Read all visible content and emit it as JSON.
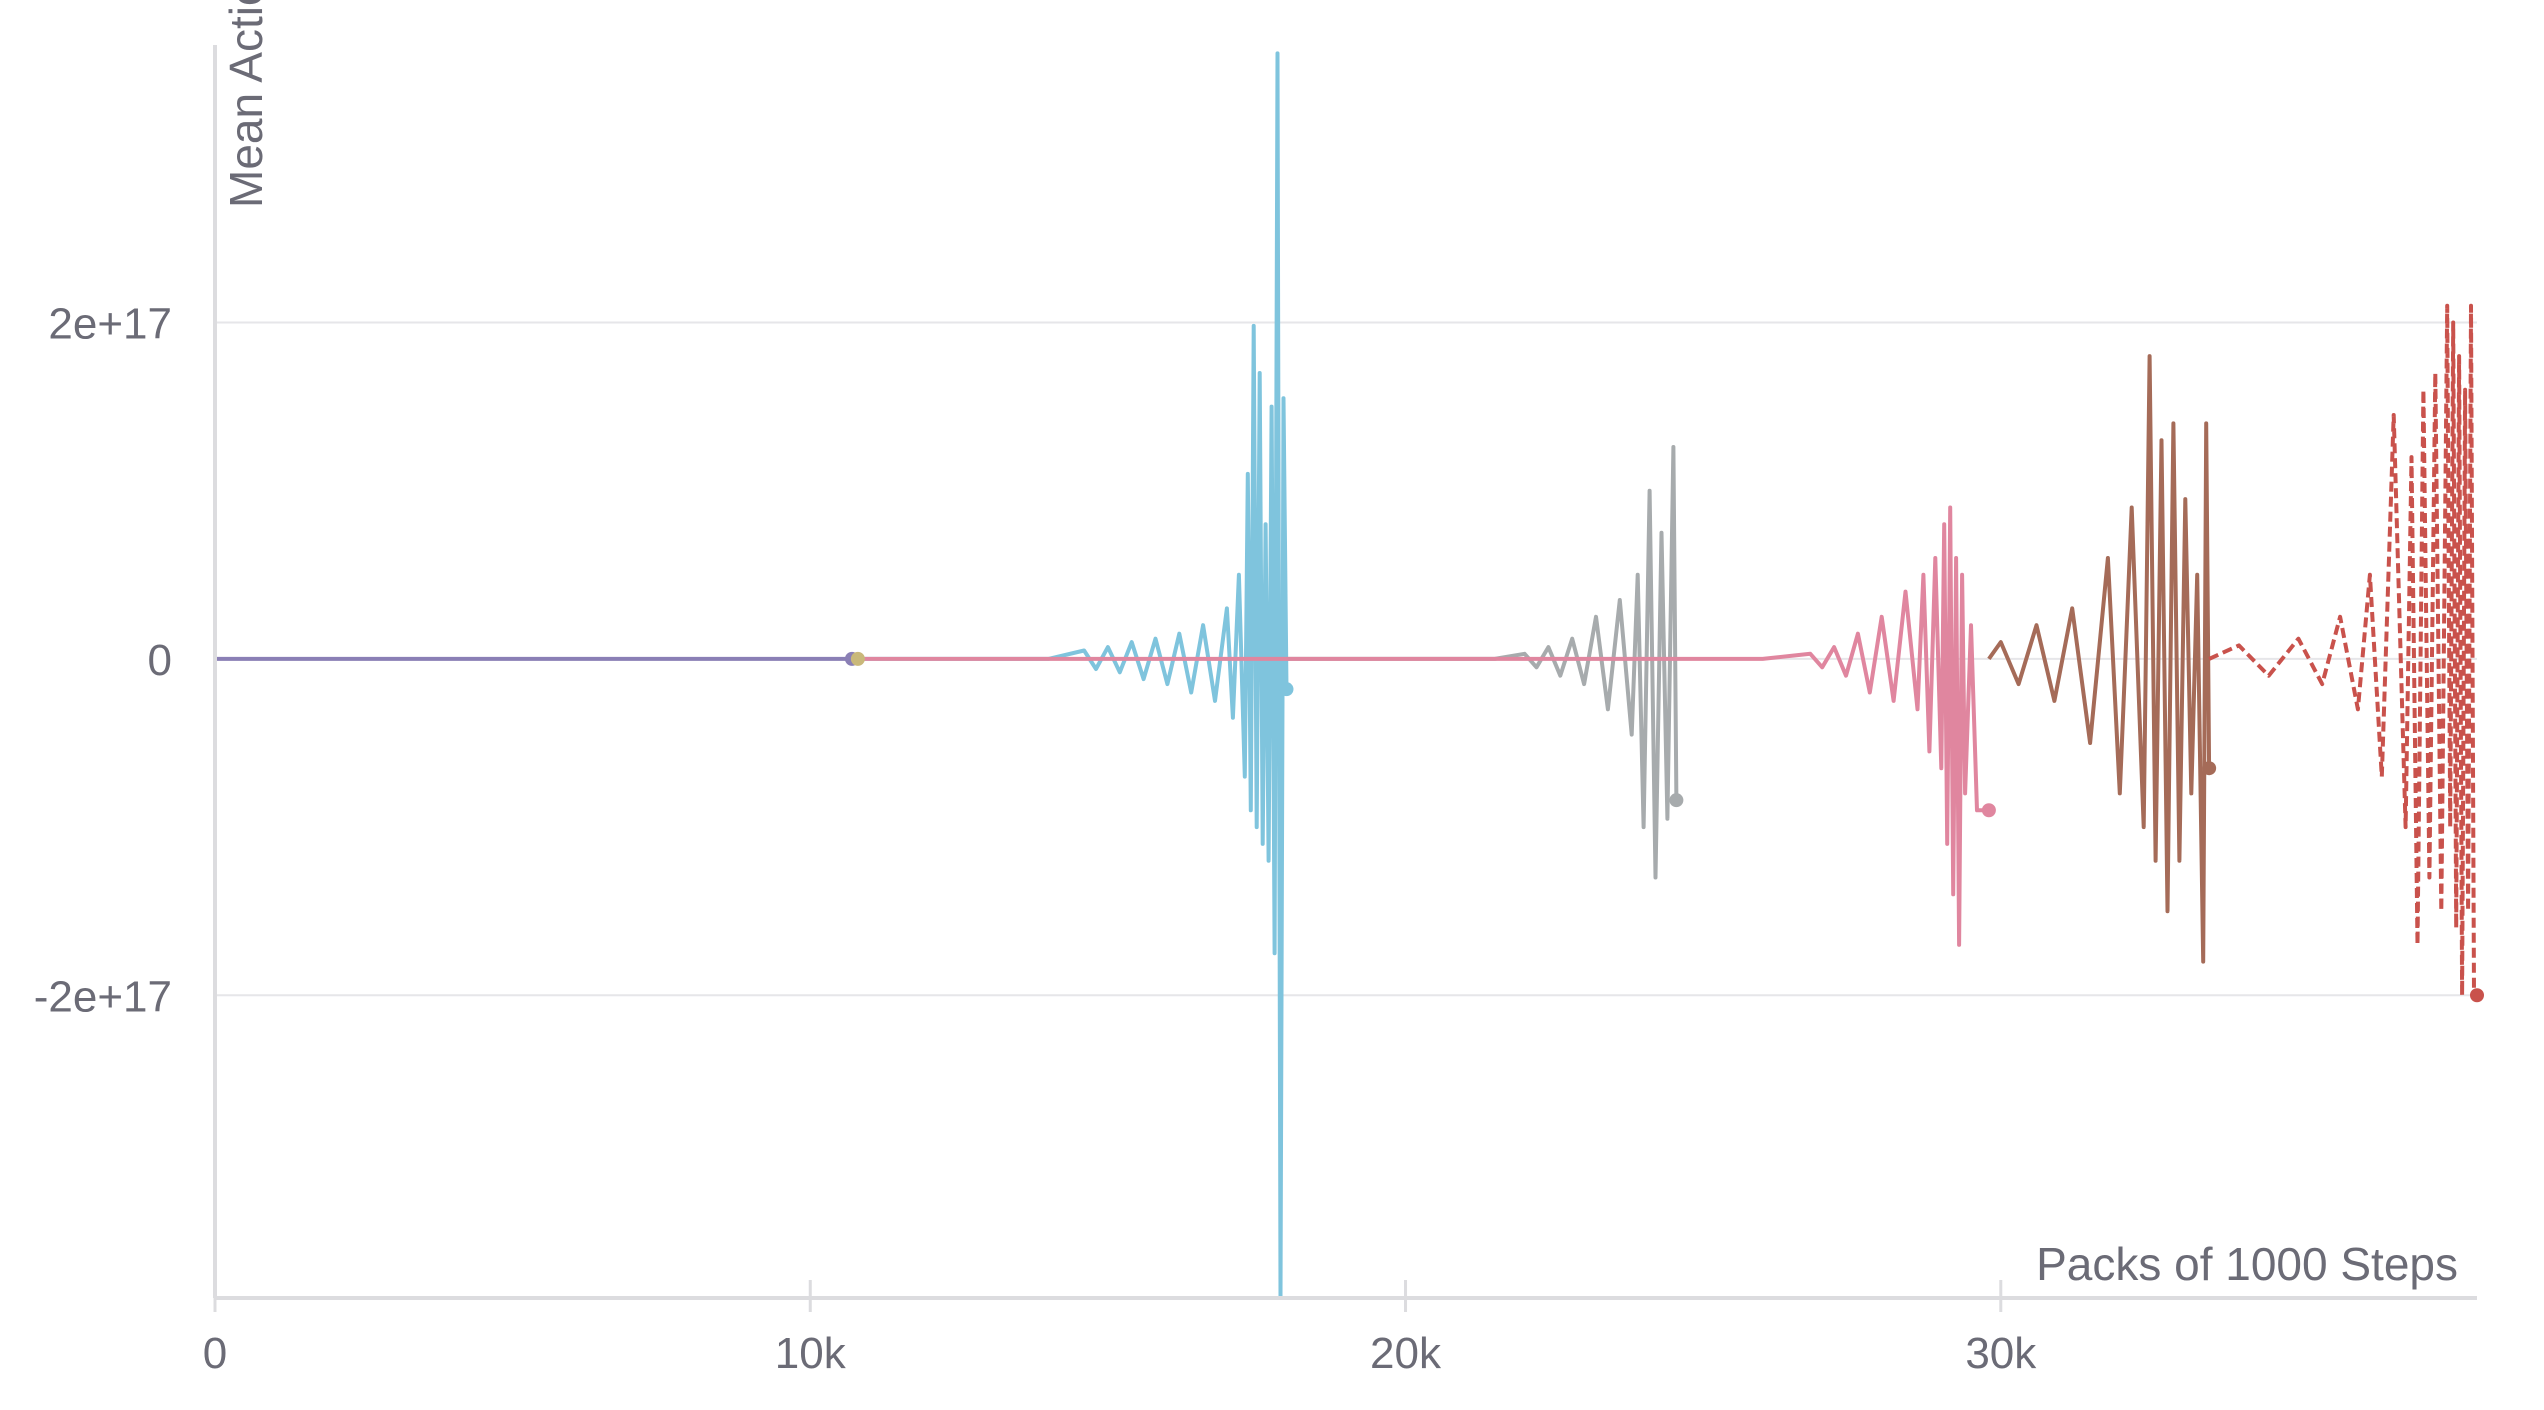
{
  "chart_data": {
    "type": "line",
    "title": "",
    "xlabel": "Packs of 1000 Steps",
    "ylabel": "Mean Action",
    "xlim": [
      0,
      38000
    ],
    "ylim": [
      -3.8e+17,
      3.65e+17
    ],
    "x_ticks": [
      {
        "value": 0,
        "label": "0"
      },
      {
        "value": 10000,
        "label": "10k"
      },
      {
        "value": 20000,
        "label": "20k"
      },
      {
        "value": 30000,
        "label": "30k"
      }
    ],
    "y_ticks": [
      {
        "value": 2e+17,
        "label": "2e+17"
      },
      {
        "value": 0,
        "label": "0"
      },
      {
        "value": -2e+17,
        "label": "-2e+17"
      }
    ],
    "grid": true,
    "legend": "none",
    "series": [
      {
        "color": "#8a7fb5",
        "dashed": false,
        "x": [
          0,
          2000,
          4000,
          6000,
          8000,
          10000,
          10700
        ],
        "y": [
          0,
          0,
          0,
          0,
          0,
          0,
          0
        ]
      },
      {
        "color": "#7fc4dd",
        "dashed": false,
        "x": [
          10800,
          12000,
          13000,
          14000,
          14600,
          14800,
          15000,
          15200,
          15400,
          15600,
          15800,
          16000,
          16200,
          16400,
          16600,
          16800,
          17000,
          17100,
          17200,
          17300,
          17350,
          17400,
          17450,
          17500,
          17550,
          17600,
          17650,
          17700,
          17750,
          17800,
          17850,
          17900,
          17950,
          18000
        ],
        "y": [
          0,
          0,
          0,
          0,
          5000000000000000.0,
          -6000000000000000.0,
          7000000000000000.0,
          -8000000000000000.0,
          1e+16,
          -1.2e+16,
          1.2e+16,
          -1.5e+16,
          1.5e+16,
          -2e+16,
          2e+16,
          -2.5e+16,
          3e+16,
          -3.5e+16,
          5e+16,
          -7e+16,
          1.1e+17,
          -9e+16,
          1.98e+17,
          -1e+17,
          1.7e+17,
          -1.1e+17,
          8e+16,
          -1.2e+17,
          1.5e+17,
          -1.75e+17,
          3.6e+17,
          -3.8e+17,
          1.55e+17,
          -1.8e+16
        ]
      },
      {
        "color": "#a7abad",
        "dashed": false,
        "x": [
          18000,
          20000,
          21500,
          22000,
          22200,
          22400,
          22600,
          22800,
          23000,
          23200,
          23400,
          23600,
          23800,
          23900,
          24000,
          24100,
          24200,
          24300,
          24400,
          24500,
          24550
        ],
        "y": [
          0,
          0,
          0,
          3000000000000000.0,
          -5000000000000000.0,
          7000000000000000.0,
          -1e+16,
          1.2e+16,
          -1.5e+16,
          2.5e+16,
          -3e+16,
          3.5e+16,
          -4.5e+16,
          5e+16,
          -1e+17,
          1e+17,
          -1.3e+17,
          7.5e+16,
          -9.5e+16,
          1.26e+17,
          -8.4e+16
        ]
      },
      {
        "color": "#e0869f",
        "dashed": false,
        "x": [
          10800,
          14000,
          18000,
          24600,
          26000,
          26800,
          27000,
          27200,
          27400,
          27600,
          27800,
          28000,
          28200,
          28400,
          28600,
          28700,
          28800,
          28900,
          29000,
          29050,
          29100,
          29150,
          29200,
          29250,
          29300,
          29350,
          29400,
          29500,
          29600,
          29800
        ],
        "y": [
          0,
          0,
          0,
          0,
          0,
          3000000000000000.0,
          -5000000000000000.0,
          7000000000000000.0,
          -1e+16,
          1.5e+16,
          -2e+16,
          2.5e+16,
          -2.5e+16,
          4e+16,
          -3e+16,
          5e+16,
          -5.5e+16,
          6e+16,
          -6.5e+16,
          8e+16,
          -1.1e+17,
          9e+16,
          -1.4e+17,
          6e+16,
          -1.7e+17,
          5e+16,
          -8e+16,
          2e+16,
          -9e+16,
          -9e+16
        ]
      },
      {
        "color": "#a56b58",
        "dashed": false,
        "x": [
          29800,
          30000,
          30300,
          30600,
          30900,
          31200,
          31500,
          31800,
          32000,
          32200,
          32400,
          32500,
          32600,
          32700,
          32800,
          32900,
          33000,
          33100,
          33200,
          33300,
          33400,
          33450,
          33500
        ],
        "y": [
          0,
          1e+16,
          -1.5e+16,
          2e+16,
          -2.5e+16,
          3e+16,
          -5e+16,
          6e+16,
          -8e+16,
          9e+16,
          -1e+17,
          1.8e+17,
          -1.2e+17,
          1.3e+17,
          -1.5e+17,
          1.4e+17,
          -1.2e+17,
          9.5e+16,
          -8e+16,
          5e+16,
          -1.8e+17,
          1.4e+17,
          -6.5e+16
        ]
      },
      {
        "color": "#c9524c",
        "dashed": true,
        "x": [
          33500,
          34000,
          34500,
          35000,
          35400,
          35700,
          36000,
          36200,
          36400,
          36600,
          36800,
          36900,
          37000,
          37100,
          37200,
          37300,
          37400,
          37500,
          37550,
          37600,
          37650,
          37700,
          37750,
          37800,
          37850,
          37900,
          37950,
          38000
        ],
        "y": [
          0,
          8000000000000000.0,
          -1e+16,
          1.2e+16,
          -1.5e+16,
          2.5e+16,
          -3e+16,
          5e+16,
          -7e+16,
          1.45e+17,
          -1e+17,
          1.2e+17,
          -1.7e+17,
          1.6e+17,
          -1.3e+17,
          1.7e+17,
          -1.5e+17,
          2.1e+17,
          -1e+17,
          2e+17,
          -1.6e+17,
          1.8e+17,
          -2e+17,
          1.6e+17,
          -1.5e+17,
          2.1e+17,
          -2e+17,
          -2e+17
        ]
      }
    ],
    "end_markers": [
      {
        "x": 10700,
        "y": 0,
        "color": "#8a7fb5"
      },
      {
        "x": 10800,
        "y": 0,
        "color": "#c9b87a"
      },
      {
        "x": 18000,
        "y": -1.8e+16,
        "color": "#7fc4dd"
      },
      {
        "x": 24550,
        "y": -8.4e+16,
        "color": "#a7abad"
      },
      {
        "x": 29800,
        "y": -9e+16,
        "color": "#e0869f"
      },
      {
        "x": 33500,
        "y": -6.5e+16,
        "color": "#a56b58"
      },
      {
        "x": 38000,
        "y": -2e+17,
        "color": "#c9524c"
      }
    ]
  }
}
